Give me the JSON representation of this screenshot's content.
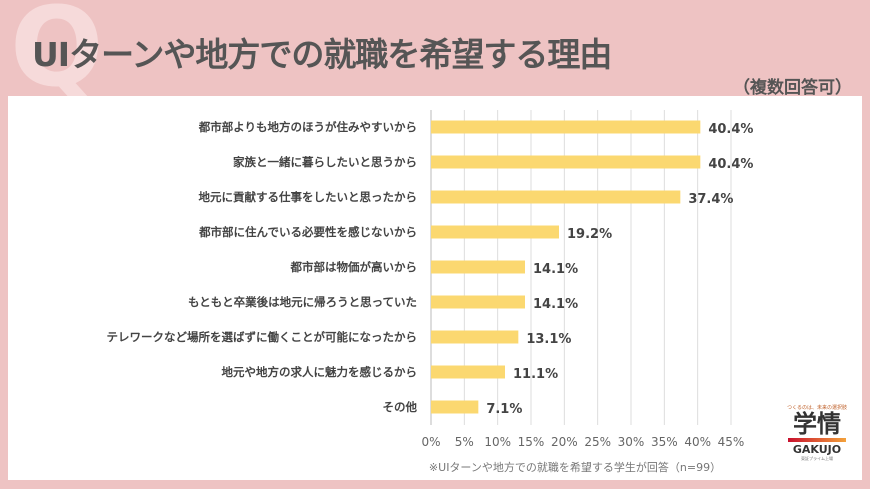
{
  "header": {
    "title": "UIターンや地方での就職を希望する理由",
    "subtitle": "（複数回答可）",
    "watermark": "Q"
  },
  "chart_data": {
    "type": "bar",
    "orientation": "horizontal",
    "categories": [
      "都市部よりも地方のほうが住みやすいから",
      "家族と一緒に暮らしたいと思うから",
      "地元に貢献する仕事をしたいと思ったから",
      "都市部に住んでいる必要性を感じないから",
      "都市部は物価が高いから",
      "もともと卒業後は地元に帰ろうと思っていた",
      "テレワークなど場所を選ばずに働くことが可能になったから",
      "地元や地方の求人に魅力を感じるから",
      "その他"
    ],
    "values": [
      40.4,
      40.4,
      37.4,
      19.2,
      14.1,
      14.1,
      13.1,
      11.1,
      7.1
    ],
    "data_labels": [
      "40.4%",
      "40.4%",
      "37.4%",
      "19.2%",
      "14.1%",
      "14.1%",
      "13.1%",
      "11.1%",
      "7.1%"
    ],
    "xlim": [
      0,
      45
    ],
    "x_ticks": [
      "0%",
      "5%",
      "10%",
      "15%",
      "20%",
      "25%",
      "30%",
      "35%",
      "40%",
      "45%"
    ],
    "grid": true,
    "bar_color": "#fbd870",
    "note": "※UIターンや地方での就職を希望する学生が回答（n=99）"
  },
  "logo": {
    "tagline": "つくるのは、未来の選択肢",
    "name_jp": "学情",
    "name_en": "GAKUJO",
    "listing": "東証プライム上場"
  }
}
